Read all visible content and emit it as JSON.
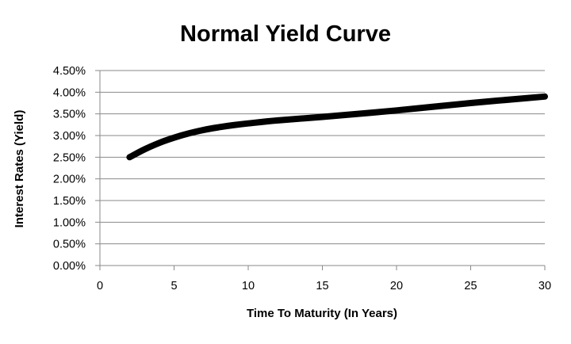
{
  "chart_data": {
    "type": "line",
    "title": "Normal Yield Curve",
    "xlabel": "Time To Maturity (In Years)",
    "ylabel": "Interest Rates (Yield)",
    "xlim": [
      0,
      30
    ],
    "ylim": [
      0,
      0.045
    ],
    "x_ticks": [
      0,
      5,
      10,
      15,
      20,
      25,
      30
    ],
    "x_tick_labels": [
      "0",
      "5",
      "10",
      "15",
      "20",
      "25",
      "30"
    ],
    "y_ticks": [
      0,
      0.005,
      0.01,
      0.015,
      0.02,
      0.025,
      0.03,
      0.035,
      0.04,
      0.045
    ],
    "y_tick_labels": [
      "0.00%",
      "0.50%",
      "1.00%",
      "1.50%",
      "2.00%",
      "2.50%",
      "3.00%",
      "3.50%",
      "4.00%",
      "4.50%"
    ],
    "grid": "horizontal",
    "legend": "none",
    "series": [
      {
        "x": [
          2,
          3,
          4,
          5,
          6,
          7,
          8,
          9,
          10,
          12,
          15,
          20,
          25,
          30
        ],
        "y": [
          0.025,
          0.0268,
          0.0283,
          0.0295,
          0.0305,
          0.0313,
          0.0319,
          0.0324,
          0.0328,
          0.0335,
          0.0343,
          0.0358,
          0.0375,
          0.039
        ],
        "color": "#000000"
      }
    ]
  }
}
